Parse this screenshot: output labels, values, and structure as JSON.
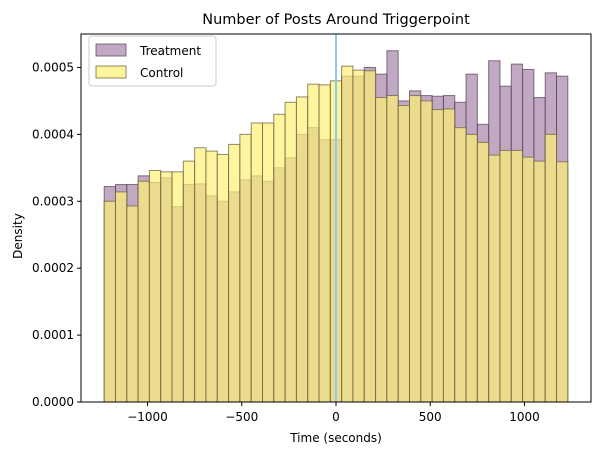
{
  "chart_data": {
    "type": "bar",
    "title": "Number of Posts Around Triggerpoint",
    "xlabel": "Time (seconds)",
    "ylabel": "Density",
    "xlim": [
      -1353,
      1353
    ],
    "ylim": [
      0,
      0.00055
    ],
    "xticks": [
      -1000,
      -500,
      0,
      500,
      1000
    ],
    "xtick_labels": [
      "−1000",
      "−500",
      "0",
      "500",
      "1000"
    ],
    "yticks": [
      0,
      0.0001,
      0.0002,
      0.0003,
      0.0004,
      0.0005
    ],
    "ytick_labels": [
      "0.0000",
      "0.0001",
      "0.0002",
      "0.0003",
      "0.0004",
      "0.0005"
    ],
    "vline": {
      "x": 0,
      "color": "#87ceeb"
    },
    "grid": false,
    "legend_position": "top-left",
    "bin_edges": [
      -1230,
      -1170,
      -1110,
      -1050,
      -990,
      -930,
      -870,
      -810,
      -750,
      -690,
      -630,
      -570,
      -510,
      -450,
      -390,
      -330,
      -270,
      -210,
      -150,
      -90,
      -30,
      30,
      90,
      150,
      210,
      270,
      330,
      390,
      450,
      510,
      570,
      630,
      690,
      750,
      810,
      870,
      930,
      990,
      1050,
      1110,
      1170,
      1230
    ],
    "series": [
      {
        "name": "Treatment",
        "color": "#9f7aa3",
        "edge_color": "#5a4a5a",
        "opacity": 0.65,
        "values": [
          0.000322,
          0.000325,
          0.000325,
          0.000338,
          0.000328,
          0.000335,
          0.000292,
          0.000325,
          0.000326,
          0.000308,
          0.0003,
          0.000314,
          0.000332,
          0.000338,
          0.00033,
          0.00035,
          0.000365,
          0.0004,
          0.00041,
          0.000392,
          0.000392,
          0.000487,
          0.000487,
          0.0005,
          0.00049,
          0.000525,
          0.00045,
          0.000465,
          0.000458,
          0.000457,
          0.000458,
          0.000448,
          0.00049,
          0.000415,
          0.00051,
          0.000472,
          0.000505,
          0.000497,
          0.000455,
          0.000492,
          0.000487
        ]
      },
      {
        "name": "Control",
        "color": "#fff176",
        "edge_color": "#6b6340",
        "opacity": 0.7,
        "values": [
          0.0003,
          0.000314,
          0.000293,
          0.00033,
          0.000346,
          0.000344,
          0.000344,
          0.00036,
          0.00038,
          0.000375,
          0.00037,
          0.000385,
          0.0004,
          0.000417,
          0.000417,
          0.00043,
          0.000448,
          0.000456,
          0.000475,
          0.000474,
          0.00048,
          0.000502,
          0.000496,
          0.000495,
          0.000455,
          0.000458,
          0.000443,
          0.000458,
          0.00045,
          0.000437,
          0.000438,
          0.00041,
          0.0004,
          0.000388,
          0.000369,
          0.000376,
          0.000376,
          0.000366,
          0.00036,
          0.0004,
          0.000359
        ]
      }
    ]
  }
}
